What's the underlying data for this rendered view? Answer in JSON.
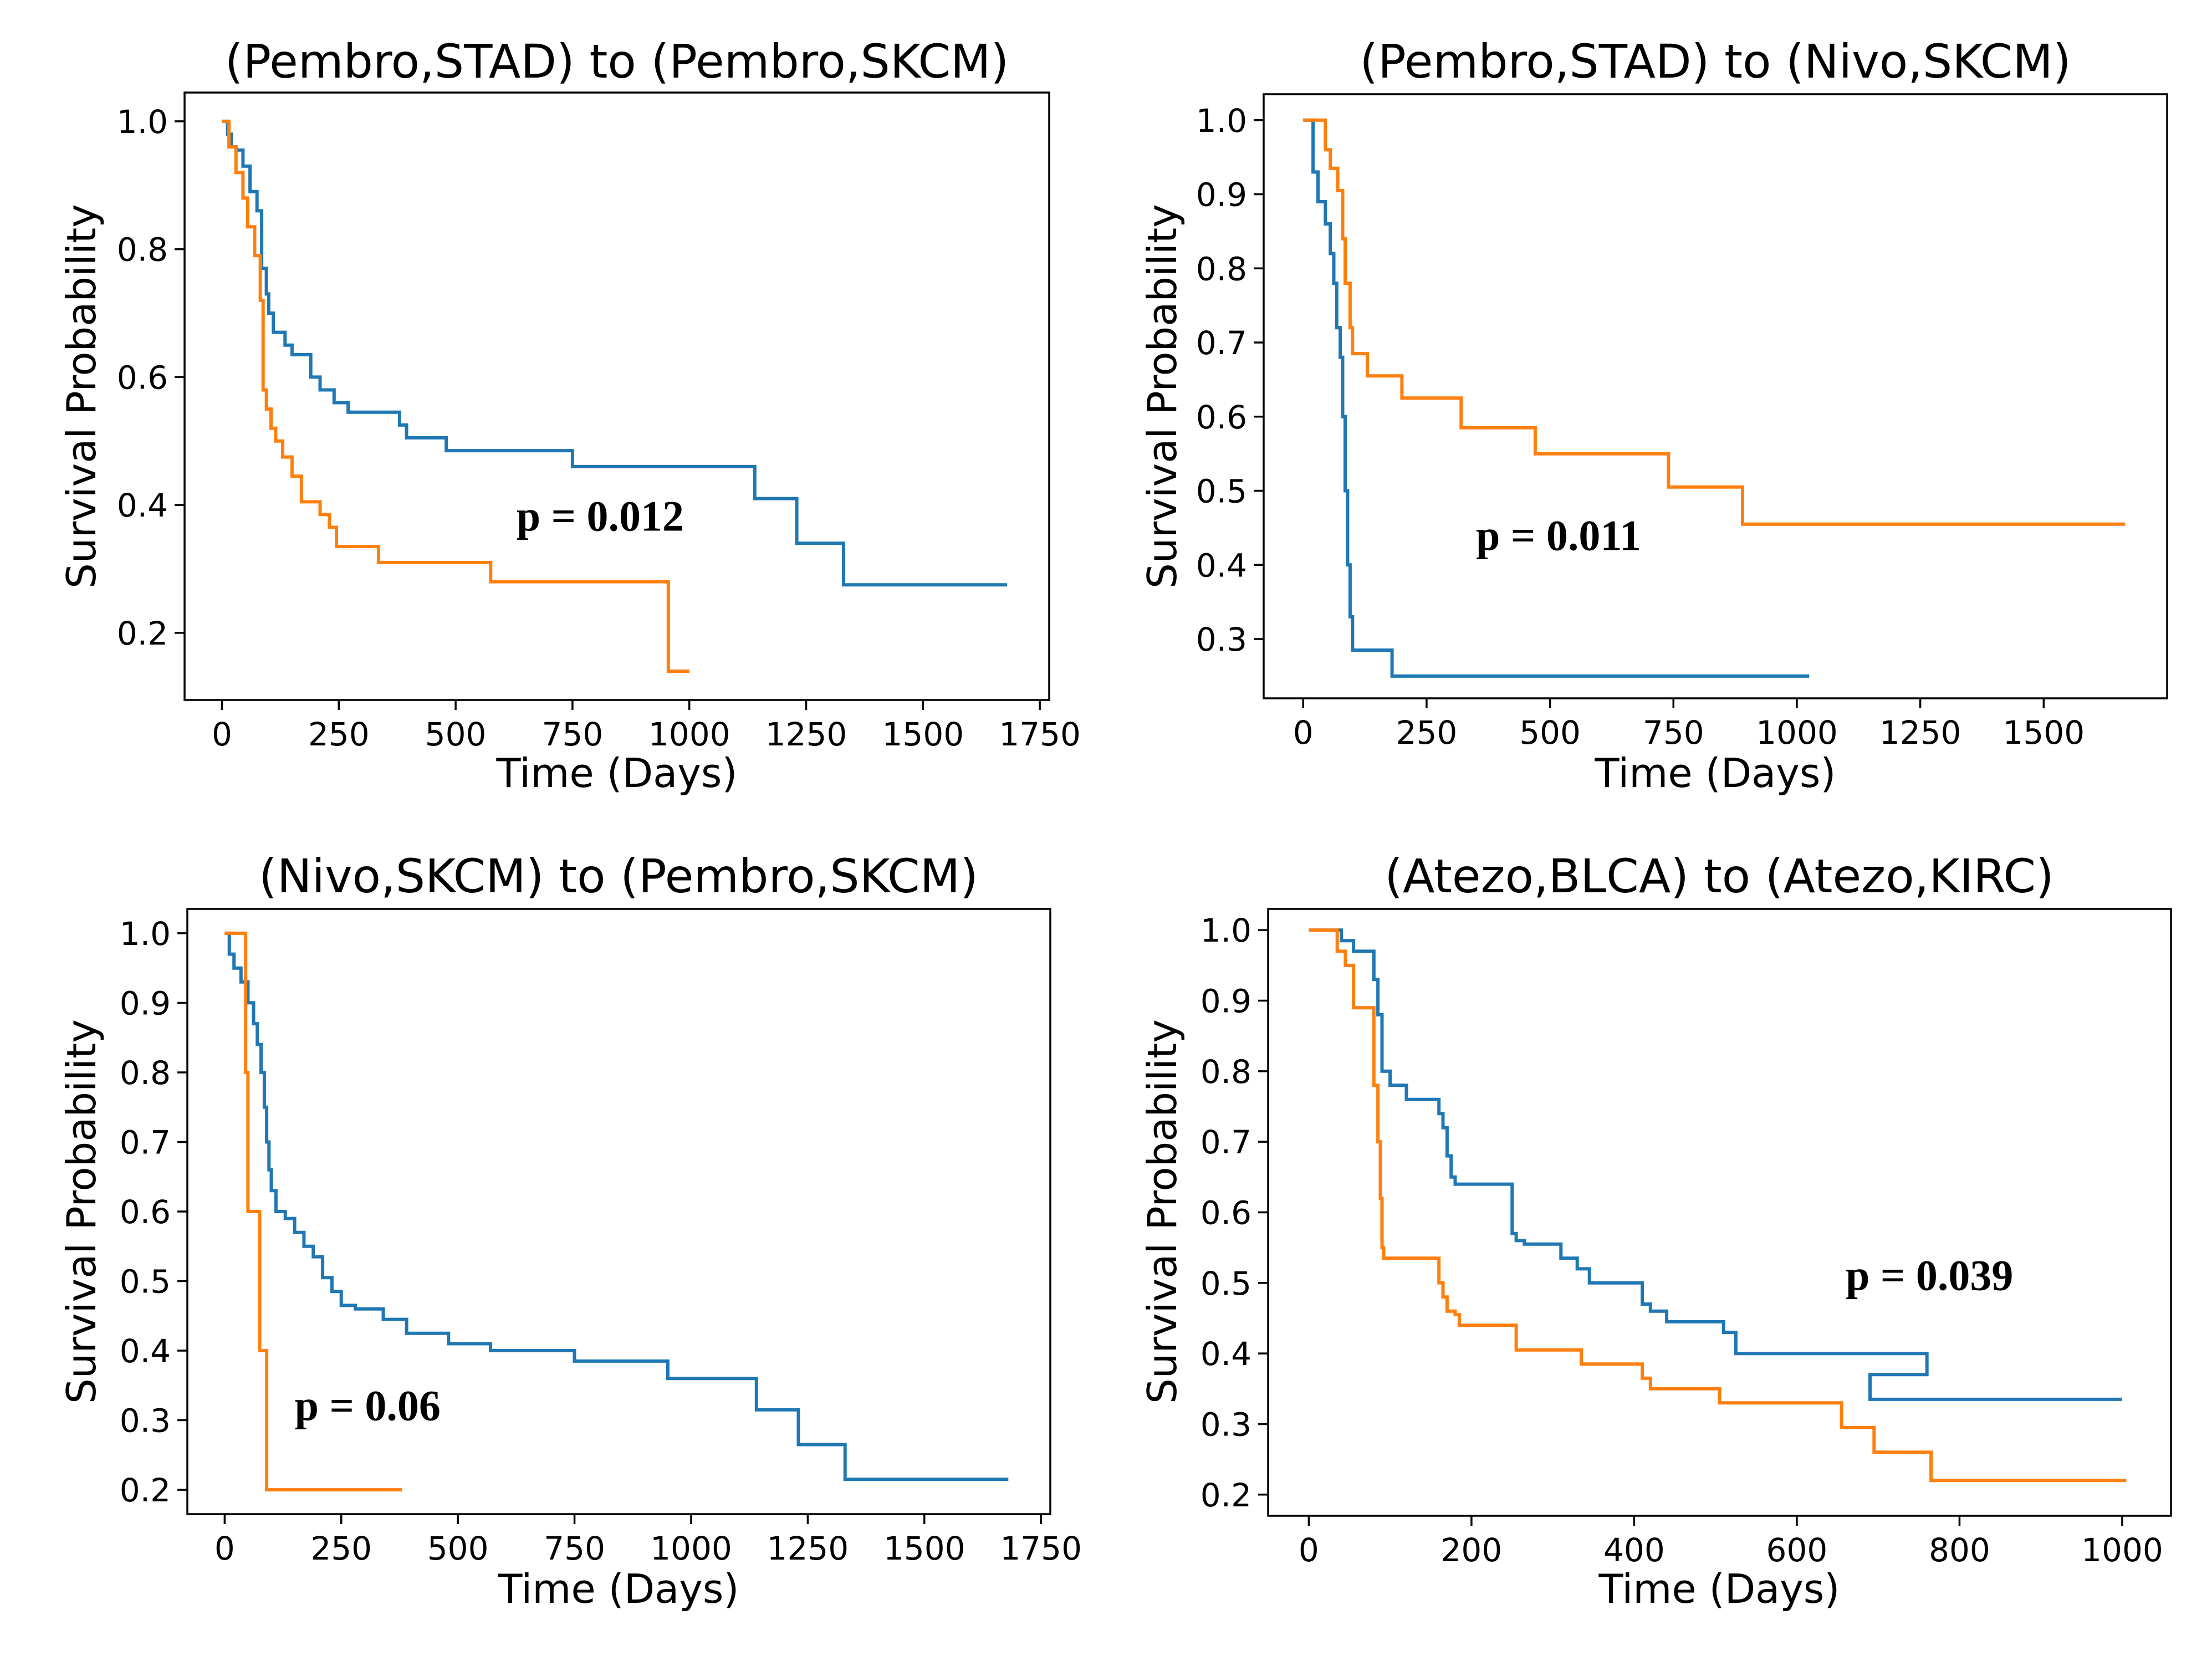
{
  "colors": {
    "blue": "#1f77b4",
    "orange": "#ff7f0e"
  },
  "chart_data": [
    {
      "type": "line",
      "step": "post",
      "title": "(Pembro,STAD) to (Pembro,SKCM)",
      "xlabel": "Time (Days)",
      "ylabel": "Survival Probability",
      "xlim": [
        -80,
        1770
      ],
      "ylim": [
        0.095,
        1.045
      ],
      "xticks": [
        0,
        250,
        500,
        750,
        1000,
        1250,
        1500,
        1750
      ],
      "xtick_labels": [
        "0",
        "250",
        "500",
        "750",
        "1000",
        "1250",
        "1500",
        "1750"
      ],
      "yticks": [
        0.2,
        0.4,
        0.6,
        0.8,
        1.0
      ],
      "ytick_labels": [
        "0.2",
        "0.4",
        "0.6",
        "0.8",
        "1.0"
      ],
      "annotation": {
        "text": "p = 0.012",
        "x": 630,
        "y": 0.36
      },
      "series": [
        {
          "color": "#1f77b4",
          "x": [
            0,
            12,
            20,
            30,
            45,
            60,
            75,
            85,
            95,
            100,
            110,
            135,
            150,
            190,
            210,
            240,
            270,
            380,
            395,
            480,
            750,
            1140,
            1230,
            1330,
            1680
          ],
          "y": [
            1.0,
            0.98,
            0.96,
            0.955,
            0.93,
            0.89,
            0.86,
            0.77,
            0.73,
            0.7,
            0.67,
            0.65,
            0.635,
            0.6,
            0.58,
            0.56,
            0.545,
            0.525,
            0.505,
            0.485,
            0.46,
            0.41,
            0.34,
            0.275,
            0.275
          ]
        },
        {
          "color": "#ff7f0e",
          "x": [
            0,
            15,
            30,
            45,
            55,
            70,
            82,
            88,
            95,
            105,
            115,
            130,
            150,
            170,
            210,
            230,
            245,
            335,
            575,
            955,
            1000
          ],
          "y": [
            1.0,
            0.96,
            0.92,
            0.88,
            0.835,
            0.79,
            0.72,
            0.58,
            0.55,
            0.52,
            0.5,
            0.475,
            0.445,
            0.405,
            0.385,
            0.365,
            0.335,
            0.31,
            0.28,
            0.14,
            0.14
          ]
        }
      ]
    },
    {
      "type": "line",
      "step": "post",
      "title": "(Pembro,STAD) to (Nivo,SKCM)",
      "xlabel": "Time (Days)",
      "ylabel": "Survival Probability",
      "xlim": [
        -80,
        1750
      ],
      "ylim": [
        0.22,
        1.035
      ],
      "xticks": [
        0,
        250,
        500,
        750,
        1000,
        1250,
        1500
      ],
      "xtick_labels": [
        "0",
        "250",
        "500",
        "750",
        "1000",
        "1250",
        "1500"
      ],
      "yticks": [
        0.3,
        0.4,
        0.5,
        0.6,
        0.7,
        0.8,
        0.9,
        1.0
      ],
      "ytick_labels": [
        "0.3",
        "0.4",
        "0.5",
        "0.6",
        "0.7",
        "0.8",
        "0.9",
        "1.0"
      ],
      "annotation": {
        "text": "p = 0.011",
        "x": 350,
        "y": 0.42
      },
      "series": [
        {
          "color": "#1f77b4",
          "x": [
            0,
            20,
            30,
            45,
            55,
            62,
            68,
            75,
            80,
            85,
            90,
            95,
            100,
            180,
            1025
          ],
          "y": [
            1.0,
            0.93,
            0.89,
            0.86,
            0.82,
            0.78,
            0.72,
            0.68,
            0.6,
            0.5,
            0.4,
            0.33,
            0.285,
            0.25,
            0.25
          ]
        },
        {
          "color": "#ff7f0e",
          "x": [
            0,
            45,
            55,
            70,
            80,
            85,
            95,
            100,
            130,
            200,
            320,
            470,
            740,
            890,
            1665
          ],
          "y": [
            1.0,
            0.96,
            0.935,
            0.905,
            0.84,
            0.78,
            0.72,
            0.685,
            0.655,
            0.625,
            0.585,
            0.55,
            0.505,
            0.455,
            0.455
          ]
        }
      ]
    },
    {
      "type": "line",
      "step": "post",
      "title": "(Nivo,SKCM) to (Pembro,SKCM)",
      "xlabel": "Time (Days)",
      "ylabel": "Survival Probability",
      "xlim": [
        -80,
        1770
      ],
      "ylim": [
        0.165,
        1.035
      ],
      "xticks": [
        0,
        250,
        500,
        750,
        1000,
        1250,
        1500,
        1750
      ],
      "xtick_labels": [
        "0",
        "250",
        "500",
        "750",
        "1000",
        "1250",
        "1500",
        "1750"
      ],
      "yticks": [
        0.2,
        0.3,
        0.4,
        0.5,
        0.6,
        0.7,
        0.8,
        0.9,
        1.0
      ],
      "ytick_labels": [
        "0.2",
        "0.3",
        "0.4",
        "0.5",
        "0.6",
        "0.7",
        "0.8",
        "0.9",
        "1.0"
      ],
      "annotation": {
        "text": "p = 0.06",
        "x": 150,
        "y": 0.3
      },
      "series": [
        {
          "color": "#1f77b4",
          "x": [
            0,
            10,
            20,
            35,
            50,
            62,
            70,
            78,
            85,
            90,
            95,
            100,
            110,
            130,
            150,
            170,
            190,
            210,
            230,
            250,
            280,
            340,
            390,
            480,
            570,
            750,
            950,
            1140,
            1230,
            1330,
            1680
          ],
          "y": [
            1.0,
            0.97,
            0.95,
            0.93,
            0.9,
            0.87,
            0.84,
            0.8,
            0.75,
            0.7,
            0.66,
            0.63,
            0.6,
            0.59,
            0.57,
            0.55,
            0.535,
            0.505,
            0.485,
            0.465,
            0.46,
            0.445,
            0.425,
            0.41,
            0.4,
            0.385,
            0.36,
            0.315,
            0.265,
            0.215,
            0.215
          ]
        },
        {
          "color": "#ff7f0e",
          "x": [
            0,
            45,
            50,
            75,
            90,
            380
          ],
          "y": [
            1.0,
            0.8,
            0.6,
            0.4,
            0.2,
            0.2
          ]
        }
      ]
    },
    {
      "type": "line",
      "step": "post",
      "title": "(Atezo,BLCA) to (Atezo,KIRC)",
      "xlabel": "Time (Days)",
      "ylabel": "Survival Probability",
      "xlim": [
        -50,
        1060
      ],
      "ylim": [
        0.17,
        1.03
      ],
      "xticks": [
        0,
        200,
        400,
        600,
        800,
        1000
      ],
      "xtick_labels": [
        "0",
        "200",
        "400",
        "600",
        "800",
        "1000"
      ],
      "yticks": [
        0.2,
        0.3,
        0.4,
        0.5,
        0.6,
        0.7,
        0.8,
        0.9,
        1.0
      ],
      "ytick_labels": [
        "0.2",
        "0.3",
        "0.4",
        "0.5",
        "0.6",
        "0.7",
        "0.8",
        "0.9",
        "1.0"
      ],
      "annotation": {
        "text": "p = 0.039",
        "x": 660,
        "y": 0.49
      },
      "series": [
        {
          "color": "#1f77b4",
          "x": [
            0,
            40,
            55,
            80,
            85,
            90,
            100,
            120,
            160,
            165,
            170,
            175,
            180,
            250,
            255,
            265,
            310,
            330,
            345,
            410,
            420,
            440,
            510,
            525,
            760,
            690,
            1000
          ],
          "y": [
            1.0,
            0.985,
            0.97,
            0.93,
            0.88,
            0.8,
            0.78,
            0.76,
            0.74,
            0.72,
            0.68,
            0.65,
            0.64,
            0.57,
            0.56,
            0.555,
            0.535,
            0.52,
            0.5,
            0.47,
            0.46,
            0.445,
            0.43,
            0.4,
            0.37,
            0.335,
            0.335
          ]
        },
        {
          "color": "#ff7f0e",
          "x": [
            0,
            35,
            45,
            55,
            80,
            85,
            88,
            90,
            92,
            95,
            160,
            165,
            170,
            180,
            185,
            200,
            255,
            335,
            410,
            420,
            505,
            655,
            695,
            765,
            1005
          ],
          "y": [
            1.0,
            0.97,
            0.95,
            0.89,
            0.78,
            0.7,
            0.62,
            0.55,
            0.535,
            0.535,
            0.5,
            0.48,
            0.46,
            0.455,
            0.44,
            0.44,
            0.405,
            0.385,
            0.365,
            0.35,
            0.33,
            0.295,
            0.26,
            0.22,
            0.22
          ]
        }
      ]
    }
  ]
}
